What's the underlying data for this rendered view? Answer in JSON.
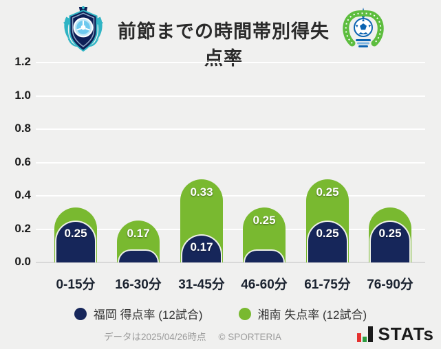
{
  "header": {
    "title": "前節までの時間帯別得失点率",
    "left_logo_icon": "avispa-fukuoka-crest",
    "right_logo_icon": "shonan-bellmare-crest"
  },
  "chart_data": {
    "type": "bar",
    "stacked": true,
    "title": "前節までの時間帯別得失点率",
    "categories": [
      "0-15分",
      "16-30分",
      "31-45分",
      "46-60分",
      "61-75分",
      "76-90分"
    ],
    "series": [
      {
        "name": "福岡 得点率 (12試合)",
        "color": "#16265a",
        "values": [
          0.25,
          0.08,
          0.17,
          0.08,
          0.25,
          0.25
        ],
        "labels": [
          "0.25",
          "",
          "0.17",
          "",
          "0.25",
          "0.25"
        ]
      },
      {
        "name": "湘南 失点率 (12試合)",
        "color": "#79b930",
        "values": [
          0.08,
          0.17,
          0.33,
          0.25,
          0.25,
          0.08
        ],
        "labels": [
          "",
          "0.17",
          "0.33",
          "0.25",
          "0.25",
          ""
        ]
      }
    ],
    "stack_totals": [
      0.33,
      0.25,
      0.5,
      0.33,
      0.5,
      0.33
    ],
    "ylim": [
      0,
      1.2
    ],
    "yticks": [
      "0.0",
      "0.2",
      "0.4",
      "0.6",
      "0.8",
      "1.0",
      "1.2"
    ],
    "grid": true,
    "legend_position": "bottom"
  },
  "legend": {
    "items": [
      {
        "label": "福岡 得点率 (12試合)",
        "color": "#16265a"
      },
      {
        "label": "湘南 失点率 (12試合)",
        "color": "#79b930"
      }
    ]
  },
  "footer": {
    "note": "データは2025/04/26時点",
    "copyright": "© SPORTERIA",
    "brand": "STATs"
  }
}
